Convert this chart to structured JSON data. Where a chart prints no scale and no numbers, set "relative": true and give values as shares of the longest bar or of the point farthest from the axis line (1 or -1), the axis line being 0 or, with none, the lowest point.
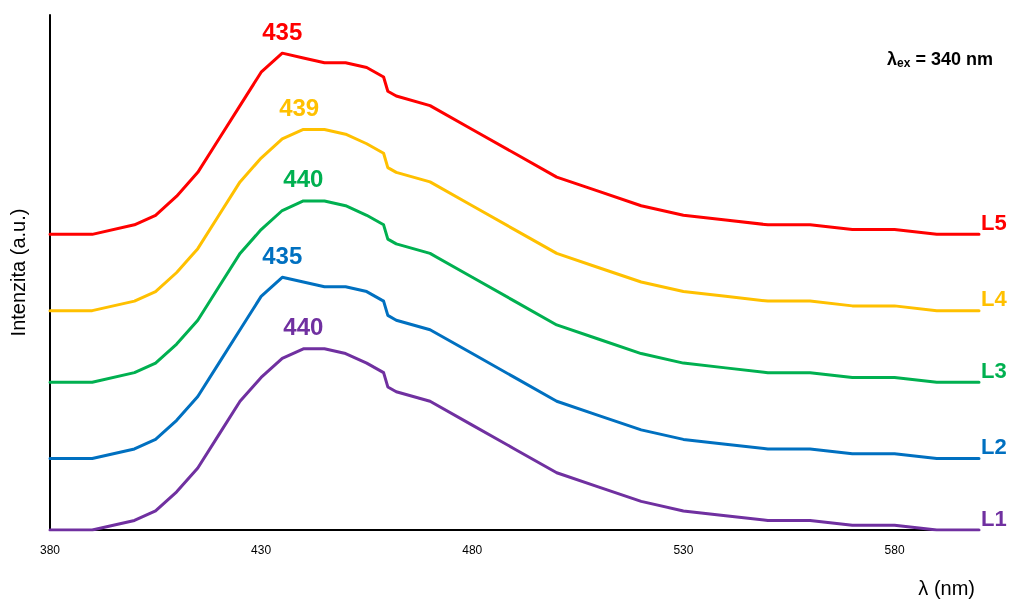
{
  "chart_data": {
    "type": "line",
    "relative": true,
    "xlabel": "λ (nm)",
    "ylabel": "Intenzita (a.u.)",
    "x": [
      380,
      390,
      400,
      405,
      410,
      415,
      420,
      425,
      430,
      435,
      440,
      445,
      450,
      455,
      459,
      460,
      462,
      470,
      480,
      490,
      500,
      510,
      520,
      530,
      540,
      550,
      560,
      570,
      580,
      590,
      600
    ],
    "xlim": [
      380,
      600
    ],
    "xticks": [
      380,
      430,
      480,
      530,
      580
    ],
    "grid": false,
    "legend": false,
    "marker": "none",
    "line_style": "solid",
    "series": [
      {
        "name": "L1",
        "color": "#7030a0",
        "values": [
          0,
          0,
          0.02,
          0.04,
          0.08,
          0.13,
          0.2,
          0.27,
          0.32,
          0.36,
          0.38,
          0.38,
          0.37,
          0.35,
          0.33,
          0.3,
          0.29,
          0.27,
          0.22,
          0.17,
          0.12,
          0.09,
          0.06,
          0.04,
          0.03,
          0.02,
          0.02,
          0.01,
          0.01,
          0,
          0
        ]
      },
      {
        "name": "L2",
        "color": "#0070c0",
        "values": [
          0.15,
          0.15,
          0.17,
          0.19,
          0.23,
          0.28,
          0.35,
          0.42,
          0.49,
          0.53,
          0.52,
          0.51,
          0.51,
          0.5,
          0.48,
          0.45,
          0.44,
          0.42,
          0.37,
          0.32,
          0.27,
          0.24,
          0.21,
          0.19,
          0.18,
          0.17,
          0.17,
          0.16,
          0.16,
          0.15,
          0.15
        ]
      },
      {
        "name": "L3",
        "color": "#00b050",
        "values": [
          0.31,
          0.31,
          0.33,
          0.35,
          0.39,
          0.44,
          0.51,
          0.58,
          0.63,
          0.67,
          0.69,
          0.69,
          0.68,
          0.66,
          0.64,
          0.61,
          0.6,
          0.58,
          0.53,
          0.48,
          0.43,
          0.4,
          0.37,
          0.35,
          0.34,
          0.33,
          0.33,
          0.32,
          0.32,
          0.31,
          0.31
        ]
      },
      {
        "name": "L4",
        "color": "#ffc000",
        "values": [
          0.46,
          0.46,
          0.48,
          0.5,
          0.54,
          0.59,
          0.66,
          0.73,
          0.78,
          0.82,
          0.84,
          0.84,
          0.83,
          0.81,
          0.79,
          0.76,
          0.75,
          0.73,
          0.68,
          0.63,
          0.58,
          0.55,
          0.52,
          0.5,
          0.49,
          0.48,
          0.48,
          0.47,
          0.47,
          0.46,
          0.46
        ]
      },
      {
        "name": "L5",
        "color": "#ff0000",
        "values": [
          0.62,
          0.62,
          0.64,
          0.66,
          0.7,
          0.75,
          0.82,
          0.89,
          0.96,
          1,
          0.99,
          0.98,
          0.98,
          0.97,
          0.95,
          0.92,
          0.91,
          0.89,
          0.84,
          0.79,
          0.74,
          0.71,
          0.68,
          0.66,
          0.65,
          0.64,
          0.64,
          0.63,
          0.63,
          0.62,
          0.62
        ]
      }
    ],
    "annotations": [
      {
        "text": "440",
        "x": 440,
        "y": 0.38
      },
      {
        "text": "435",
        "x": 435,
        "y": 0.53
      },
      {
        "text": "440",
        "x": 440,
        "y": 0.69
      },
      {
        "text": "439",
        "x": 439,
        "y": 0.84
      },
      {
        "text": "435",
        "x": 435,
        "y": 1
      },
      "λ$_{ex}$ = 340 nm"
    ]
  }
}
